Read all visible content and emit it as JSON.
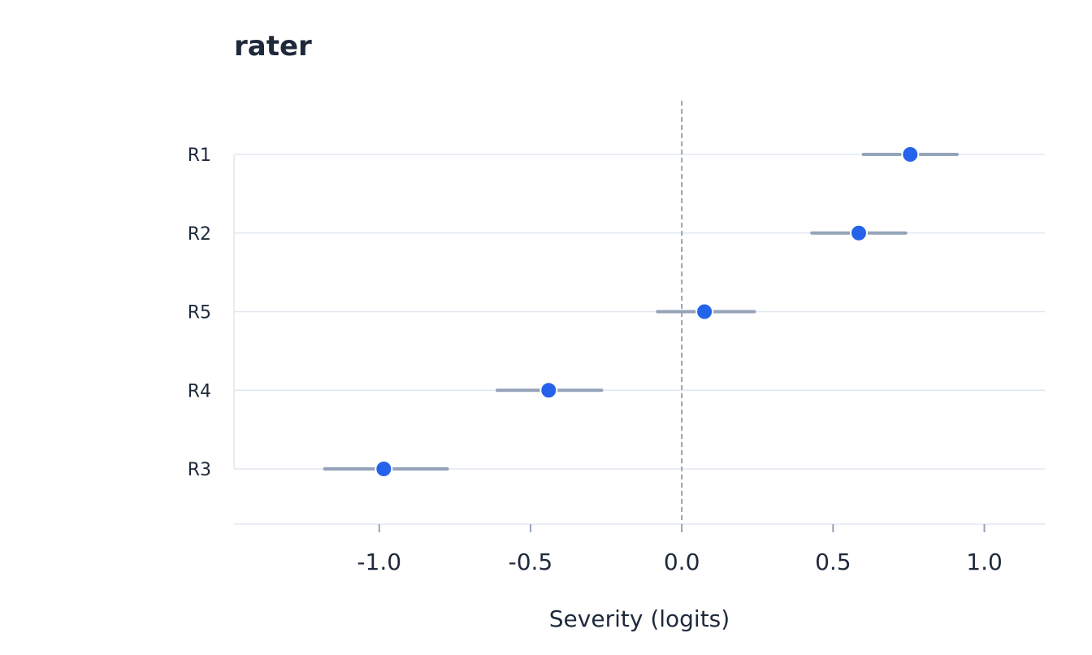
{
  "chart_data": {
    "type": "scatter",
    "title": "rater",
    "xlabel": "Severity (logits)",
    "ylabel": "",
    "xlim": [
      -1.48,
      1.2
    ],
    "x_ticks": [
      -1.0,
      -0.5,
      0.0,
      0.5,
      1.0
    ],
    "x_tick_labels": [
      "-1.0",
      "-0.5",
      "0.0",
      "0.5",
      "1.0"
    ],
    "reference_line": 0.0,
    "grid": true,
    "categories": [
      "R1",
      "R2",
      "R5",
      "R4",
      "R3"
    ],
    "estimates": [
      {
        "label": "R1",
        "value": 0.755,
        "low": 0.6,
        "high": 0.91
      },
      {
        "label": "R2",
        "value": 0.585,
        "low": 0.43,
        "high": 0.74
      },
      {
        "label": "R5",
        "value": 0.075,
        "low": -0.08,
        "high": 0.24
      },
      {
        "label": "R4",
        "value": -0.44,
        "low": -0.61,
        "high": -0.265
      },
      {
        "label": "R3",
        "value": -0.985,
        "low": -1.18,
        "high": -0.775
      }
    ],
    "colors": {
      "point": "#2563eb",
      "interval": "#94a3b8",
      "grid": "#e2e8f0",
      "reference": "#94a3b8",
      "text": "#1e293b"
    }
  }
}
